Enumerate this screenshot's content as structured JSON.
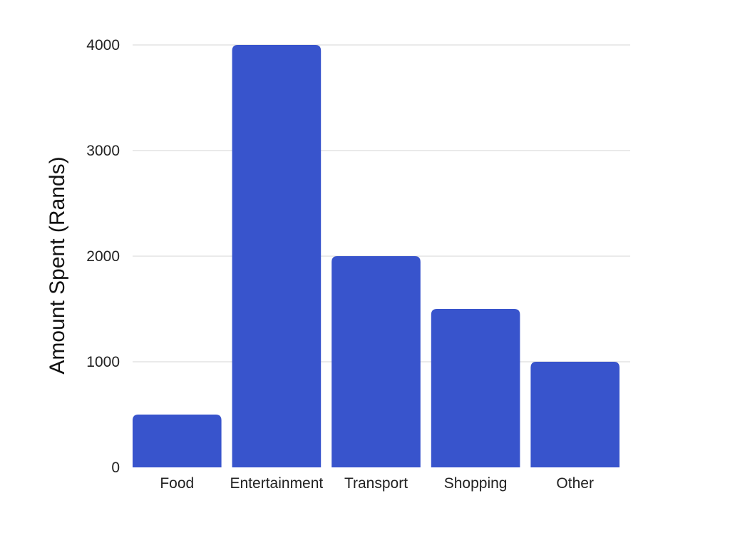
{
  "chart_data": {
    "type": "bar",
    "title": "",
    "xlabel": "",
    "ylabel": "Amount Spent (Rands)",
    "categories": [
      "Food",
      "Entertainment",
      "Transport",
      "Shopping",
      "Other"
    ],
    "values": [
      500,
      4000,
      2000,
      1500,
      1000
    ],
    "ylim": [
      0,
      4000
    ],
    "yticks": [
      0,
      1000,
      2000,
      3000,
      4000
    ],
    "grid": true,
    "legend": "none",
    "colors": {
      "bar": "#3854cc",
      "grid": "#d4d4d4",
      "text": "#222222"
    }
  }
}
